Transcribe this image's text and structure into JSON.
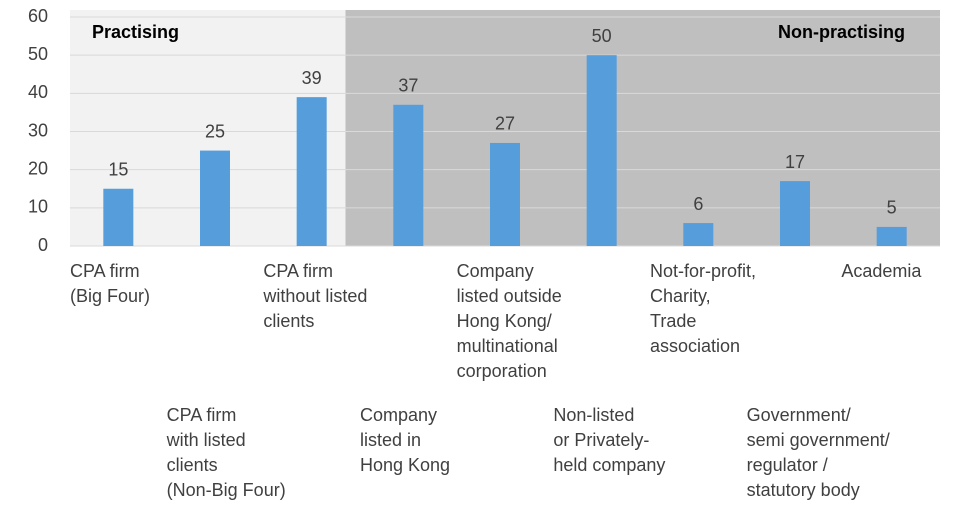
{
  "chart_data": {
    "type": "bar",
    "categories": [
      "CPA firm\n(Big Four)",
      "CPA firm\nwith listed\nclients\n(Non-Big Four)",
      "CPA firm\nwithout listed\nclients",
      "Company\nlisted in\nHong Kong",
      "Company\nlisted outside\nHong Kong/\nmultinational\ncorporation",
      "Non-listed\nor Privately-\nheld company",
      "Not-for-profit,\nCharity,\nTrade\nassociation",
      "Government/\nsemi government/\nregulator /\nstatutory body",
      "Academia"
    ],
    "values": [
      15,
      25,
      39,
      37,
      27,
      50,
      6,
      17,
      5
    ],
    "color": "#559ddb",
    "ylim": [
      0,
      60
    ],
    "yticks": [
      0,
      10,
      20,
      30,
      40,
      50,
      60
    ],
    "grid": true,
    "regions": [
      {
        "label": "Practising",
        "start": 0,
        "end": 2,
        "color": "#f2f2f2"
      },
      {
        "label": "Non-practising",
        "start": 3,
        "end": 8,
        "color": "#bfbfbf"
      }
    ]
  }
}
